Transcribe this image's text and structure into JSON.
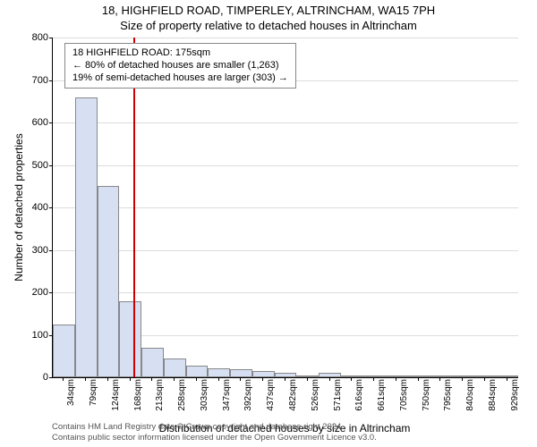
{
  "header": {
    "line1": "18, HIGHFIELD ROAD, TIMPERLEY, ALTRINCHAM, WA15 7PH",
    "line2": "Size of property relative to detached houses in Altrincham"
  },
  "chart": {
    "type": "histogram",
    "ylabel": "Number of detached properties",
    "xlabel": "Distribution of detached houses by size in Altrincham",
    "ylim": [
      0,
      800
    ],
    "ytick_step": 100,
    "x_categories": [
      "34sqm",
      "79sqm",
      "124sqm",
      "168sqm",
      "213sqm",
      "258sqm",
      "303sqm",
      "347sqm",
      "392sqm",
      "437sqm",
      "482sqm",
      "526sqm",
      "571sqm",
      "616sqm",
      "661sqm",
      "705sqm",
      "750sqm",
      "795sqm",
      "840sqm",
      "884sqm",
      "929sqm"
    ],
    "bar_values": [
      125,
      660,
      450,
      180,
      70,
      45,
      28,
      22,
      18,
      14,
      10,
      3,
      10,
      3,
      3,
      2,
      2,
      1,
      1,
      1,
      0
    ],
    "bar_color": "#d6e0f2",
    "bar_border": "#888888",
    "grid_color": "#dcdcdc",
    "background_color": "#ffffff",
    "reference_line_x_sqm": 175,
    "reference_line_color": "#cc0000",
    "label_fontsize": 12,
    "tick_fontsize": 11,
    "xtick_fontsize": 10
  },
  "annotation": {
    "line1": "18 HIGHFIELD ROAD: 175sqm",
    "line2": "← 80% of detached houses are smaller (1,263)",
    "line3": "19% of semi-detached houses are larger (303) →"
  },
  "copyright": {
    "line1": "Contains HM Land Registry data © Crown copyright and database right 2024.",
    "line2": "Contains public sector information licensed under the Open Government Licence v3.0."
  }
}
